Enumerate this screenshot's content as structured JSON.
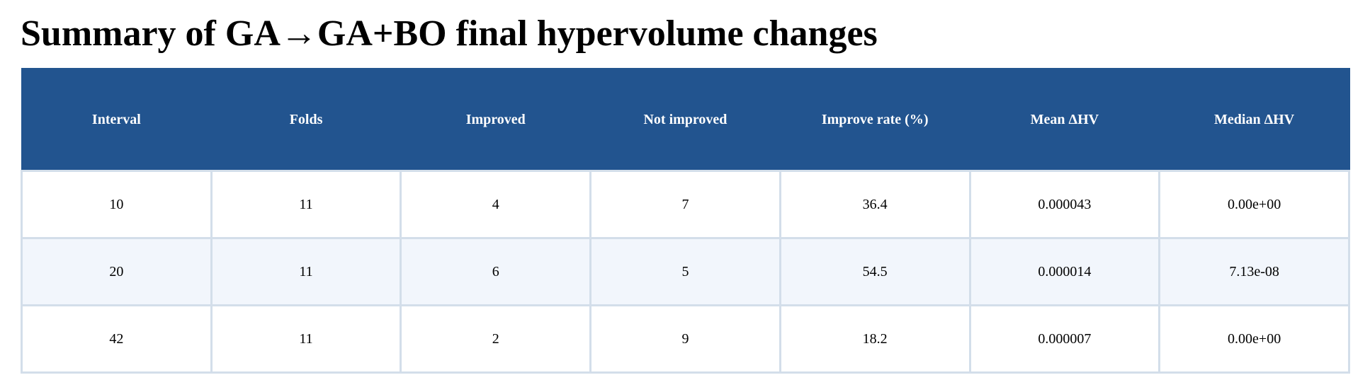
{
  "title": "Summary of GA→GA+BO final hypervolume changes",
  "colors": {
    "header_bg": "#22548f",
    "header_text": "#ffffff",
    "row_alt_bg": "#f2f6fc",
    "grid": "#d3deea"
  },
  "chart_data": {
    "type": "table",
    "title": "Summary of GA→GA+BO final hypervolume changes",
    "columns": [
      "Interval",
      "Folds",
      "Improved",
      "Not improved",
      "Improve rate (%)",
      "Mean ΔHV",
      "Median ΔHV"
    ],
    "rows": [
      [
        "10",
        "11",
        "4",
        "7",
        "36.4",
        "0.000043",
        "0.00e+00"
      ],
      [
        "20",
        "11",
        "6",
        "5",
        "54.5",
        "0.000014",
        "7.13e-08"
      ],
      [
        "42",
        "11",
        "2",
        "9",
        "18.2",
        "0.000007",
        "0.00e+00"
      ]
    ]
  }
}
